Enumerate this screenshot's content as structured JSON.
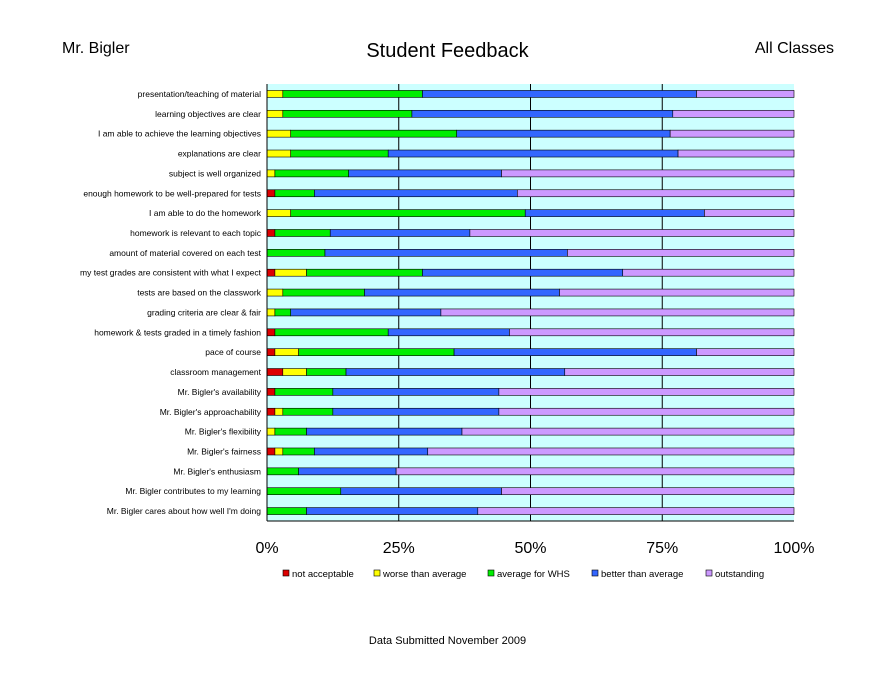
{
  "header": {
    "teacher": "Mr. Bigler",
    "title": "Student Feedback",
    "scope": "All Classes"
  },
  "footer": "Data Submitted November 2009",
  "colors": {
    "plot_bg": "#ccffff",
    "not acceptable": "#dd0000",
    "worse than average": "#ffff00",
    "average for WHS": "#00ee00",
    "better than average": "#3366ff",
    "outstanding": "#cc99ff"
  },
  "chart_data": {
    "type": "bar",
    "orientation": "horizontal",
    "stacked": "percent",
    "title": "Student Feedback",
    "xlim": [
      0,
      100
    ],
    "xticks": [
      "0%",
      "25%",
      "50%",
      "75%",
      "100%"
    ],
    "grid": "vertical",
    "legend_position": "bottom",
    "categories": [
      "presentation/teaching of material",
      "learning objectives are clear",
      "I am able to achieve the learning objectives",
      "explanations are clear",
      "subject is well organized",
      "enough homework to be well-prepared for tests",
      "I am able to do the homework",
      "homework is relevant to each topic",
      "amount of material covered on each test",
      "my test grades are consistent with what I expect",
      "tests are based on the classwork",
      "grading criteria are clear & fair",
      "homework & tests graded in a timely fashion",
      "pace of course",
      "classroom management",
      "Mr. Bigler's availability",
      "Mr. Bigler's approachability",
      "Mr. Bigler's flexibility",
      "Mr. Bigler's fairness",
      "Mr. Bigler's enthusiasm",
      "Mr. Bigler contributes to my learning",
      "Mr. Bigler cares about how well I'm doing"
    ],
    "series": [
      {
        "name": "not acceptable",
        "values": [
          0,
          0,
          0,
          0,
          0,
          1.5,
          0,
          1.5,
          0,
          1.5,
          0,
          0,
          1.5,
          1.5,
          3,
          1.5,
          1.5,
          0,
          1.5,
          0,
          0,
          0
        ]
      },
      {
        "name": "worse than average",
        "values": [
          3,
          3,
          4.5,
          4.5,
          1.5,
          0,
          4.5,
          0,
          0,
          6,
          3,
          1.5,
          0,
          4.5,
          4.5,
          0,
          1.5,
          1.5,
          1.5,
          0,
          0,
          0
        ]
      },
      {
        "name": "average for WHS",
        "values": [
          26.5,
          24.5,
          31.5,
          18.5,
          14,
          7.5,
          44.5,
          10.5,
          11,
          22,
          15.5,
          3,
          21.5,
          29.5,
          7.5,
          11,
          9.5,
          6,
          6,
          6,
          14,
          7.5
        ]
      },
      {
        "name": "better than average",
        "values": [
          52,
          49.5,
          40.5,
          55,
          29,
          38.5,
          34,
          26.5,
          46,
          38,
          37,
          28.5,
          23,
          46,
          41.5,
          31.5,
          31.5,
          29.5,
          21.5,
          18.5,
          30.5,
          32.5
        ]
      },
      {
        "name": "outstanding",
        "values": [
          18.5,
          23,
          23.5,
          22,
          55.5,
          52.5,
          17,
          61.5,
          43,
          32.5,
          44.5,
          67,
          54,
          18.5,
          43.5,
          56,
          56,
          63,
          69.5,
          75.5,
          55.5,
          60
        ]
      }
    ]
  }
}
